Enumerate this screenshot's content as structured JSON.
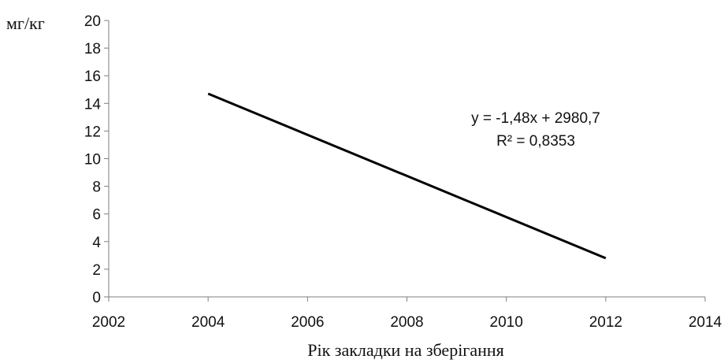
{
  "chart_data": {
    "type": "line",
    "title": "",
    "xlabel": "Рік закладки на зберігання",
    "ylabel": "мг/кг",
    "xlim": [
      2002,
      2014
    ],
    "ylim": [
      0,
      20
    ],
    "x_ticks": [
      "2002",
      "2004",
      "2006",
      "2008",
      "2010",
      "2012",
      "2014"
    ],
    "y_ticks": [
      "0",
      "2",
      "4",
      "6",
      "8",
      "10",
      "12",
      "14",
      "16",
      "18",
      "20"
    ],
    "grid": false,
    "legend": "none",
    "series": [
      {
        "x": [
          2004,
          2012
        ],
        "y": [
          14.7,
          2.8
        ],
        "color": "#000000"
      }
    ],
    "annotations": [
      "y = -1,48x + 2980,7",
      "R² = 0,8353"
    ]
  }
}
